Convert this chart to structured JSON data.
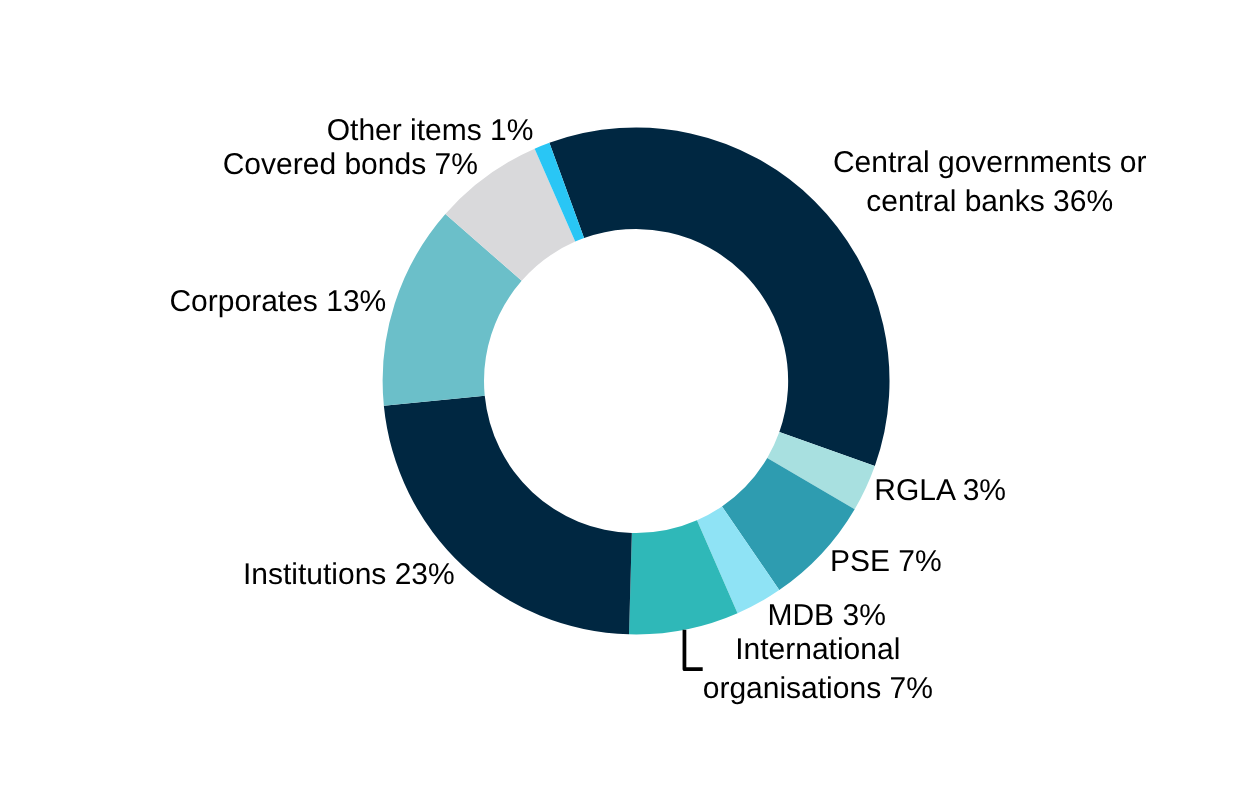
{
  "chart_data": {
    "type": "donut",
    "categories": [
      "Central governments or central banks",
      "RGLA",
      "PSE",
      "MDB",
      "International organisations",
      "Institutions",
      "Corporates",
      "Covered bonds",
      "Other items"
    ],
    "values": [
      36,
      3,
      7,
      3,
      7,
      23,
      13,
      7,
      1
    ],
    "value_labels": [
      "36%",
      "3%",
      "7%",
      "3%",
      "7%",
      "23%",
      "13%",
      "7%",
      "1%"
    ],
    "colors": [
      "#002741",
      "#a8e0e0",
      "#2e9cb0",
      "#8fe3f5",
      "#2fb8b8",
      "#002741",
      "#6bbfc9",
      "#d9d9db",
      "#29c6f5"
    ],
    "legend": false
  }
}
